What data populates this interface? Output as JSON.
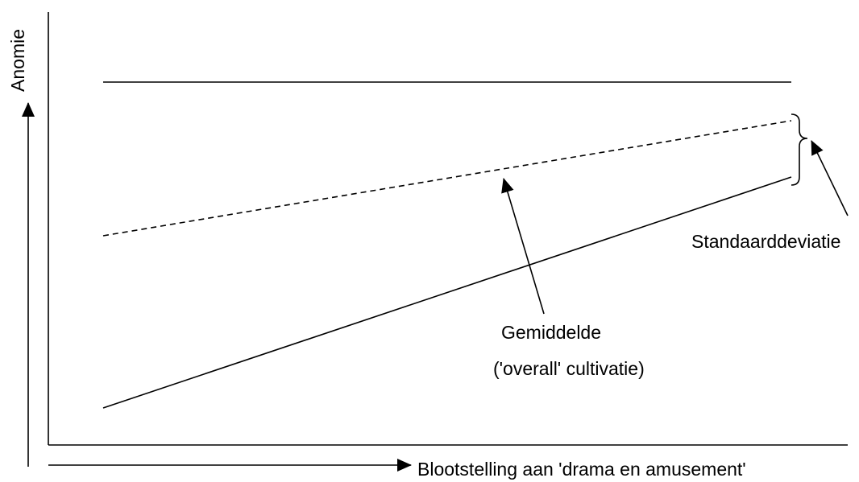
{
  "y_axis_label": "Anomie",
  "x_axis_label": "Blootstelling aan 'drama en amusement'",
  "mean_label": [
    "Gemiddelde",
    "('overall' cultivatie)"
  ],
  "sd_label": "Standaarddeviatie"
}
